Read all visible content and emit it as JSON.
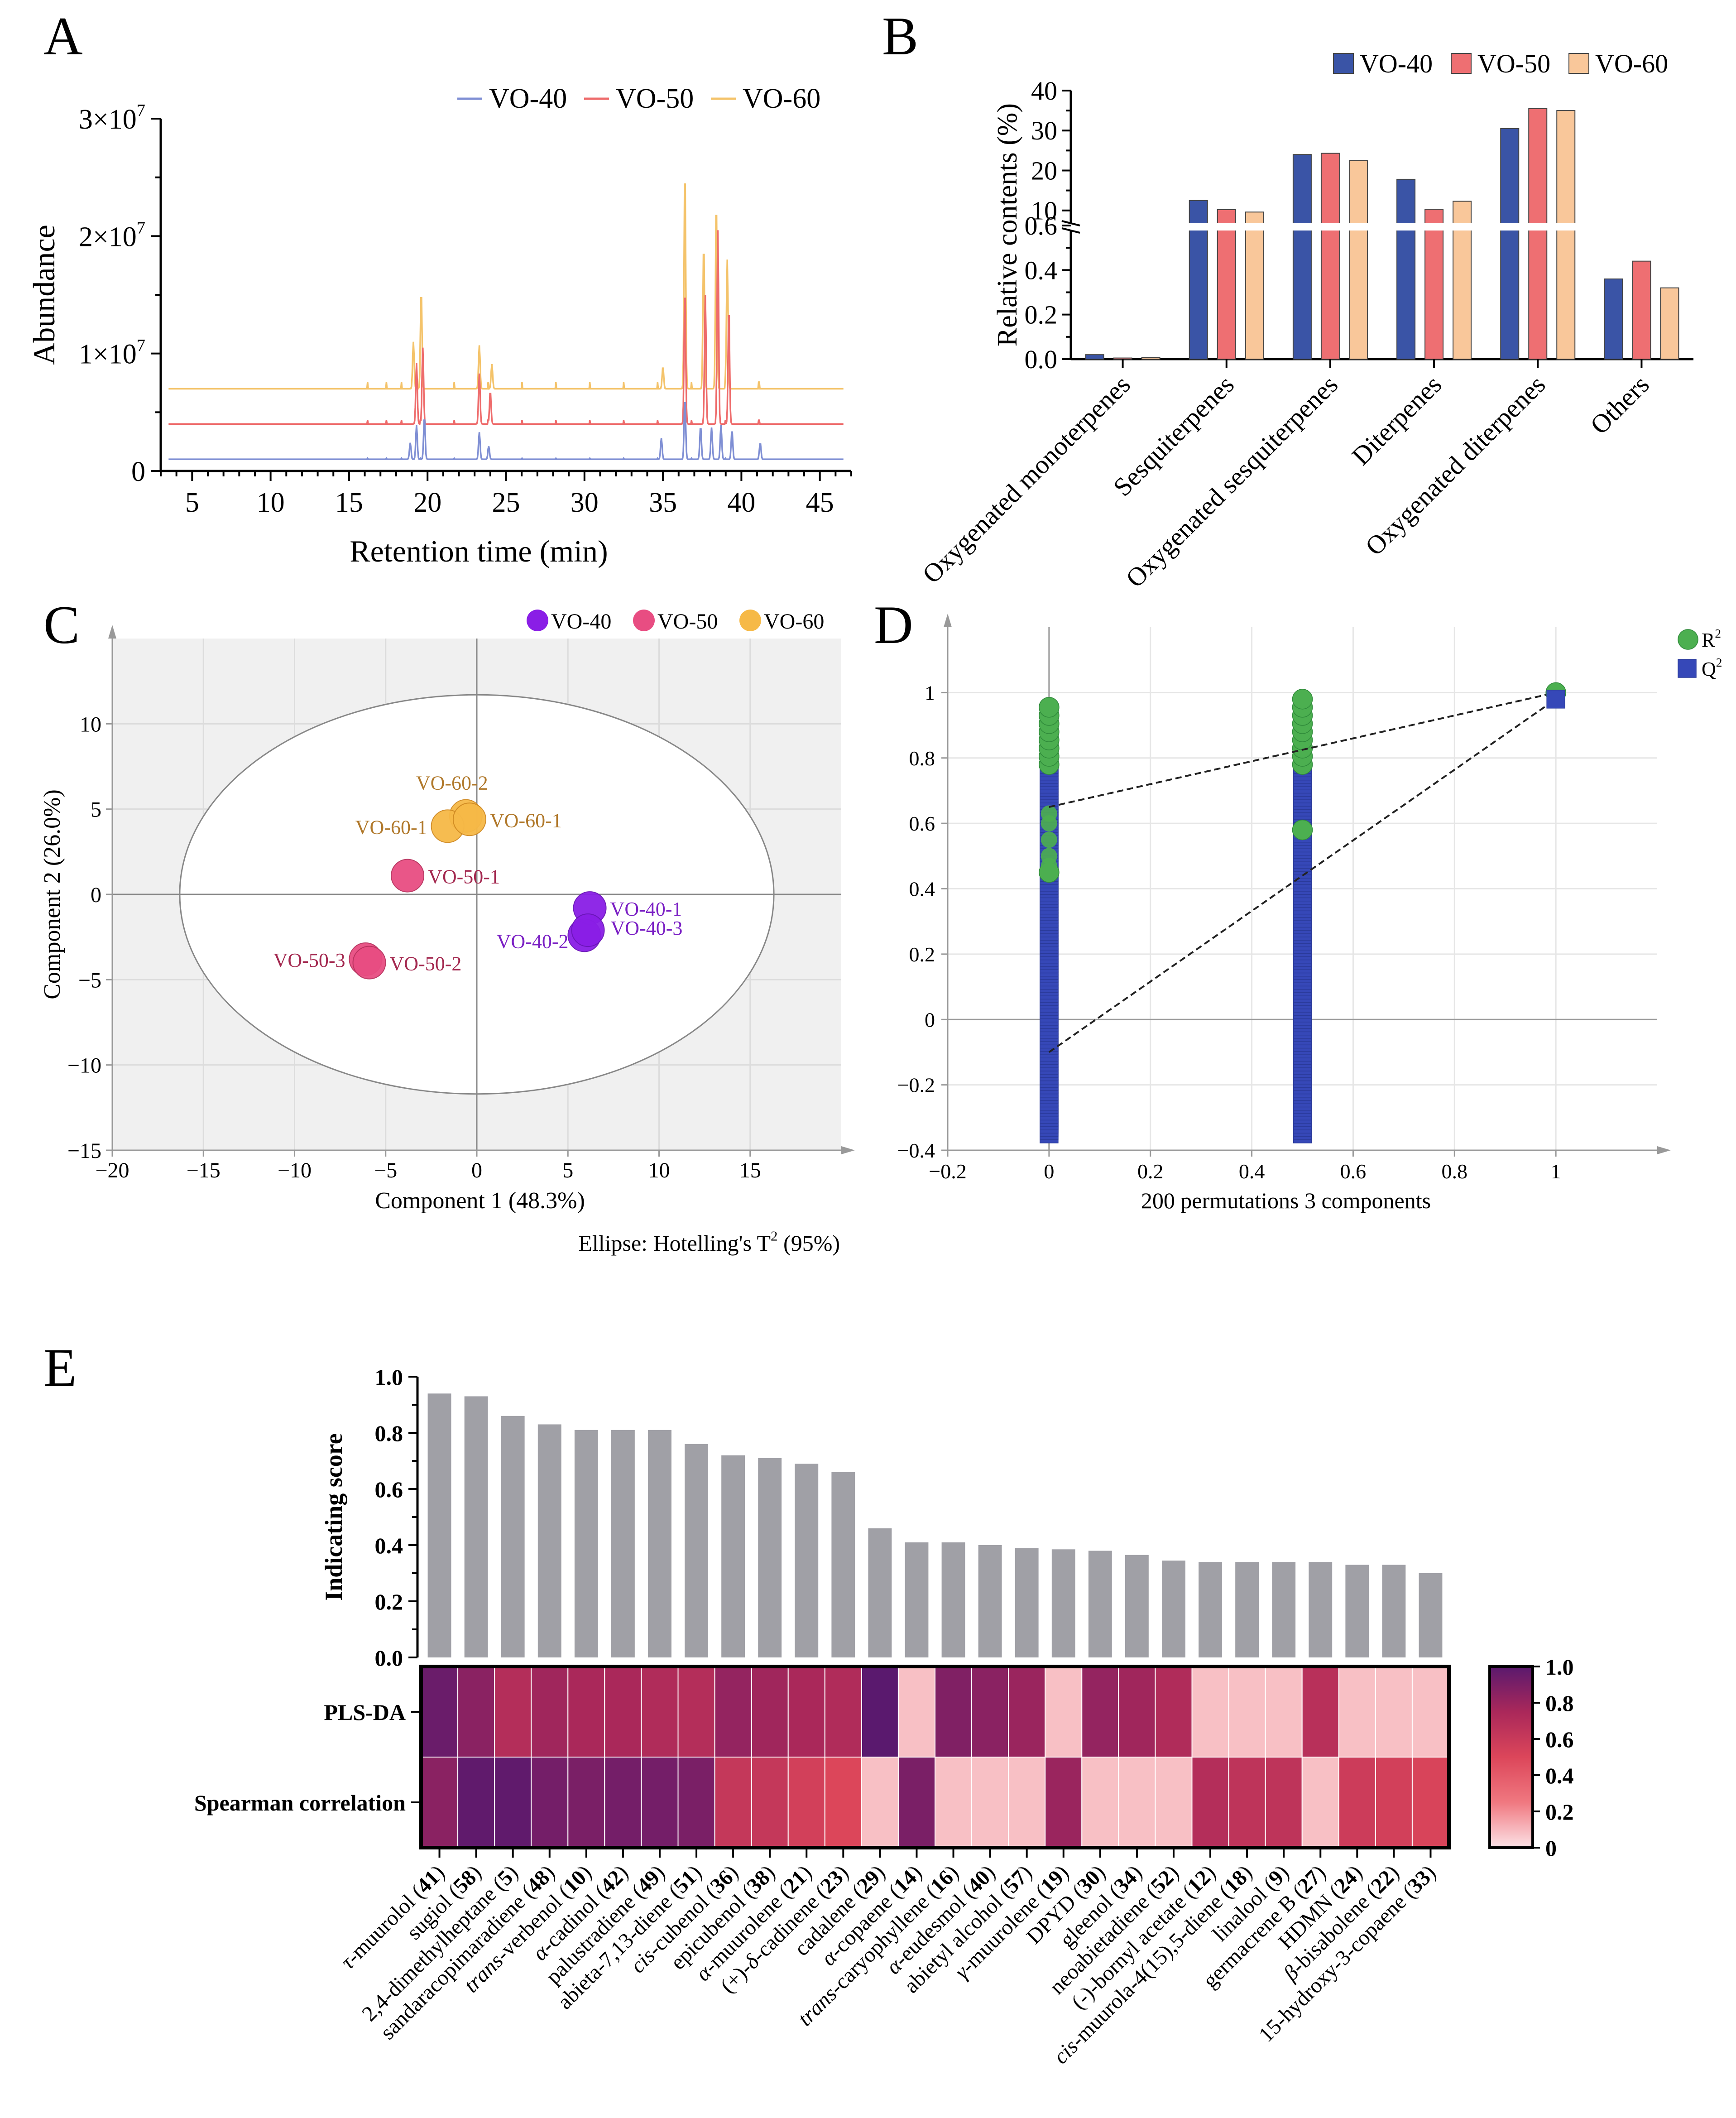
{
  "panel_labels": [
    "A",
    "B",
    "C",
    "D",
    "E"
  ],
  "colors": {
    "vo40_line": "#7f8fd4",
    "vo50_line": "#ee6b6b",
    "vo60_line": "#f4c36a",
    "vo40_bar": "#3a54a6",
    "vo50_bar": "#ee6f72",
    "vo60_bar": "#f9c79a",
    "vo40_pt": "#8a1ee6",
    "vo50_pt": "#e84d82",
    "vo60_pt": "#f6b947",
    "r2": "#4caf50",
    "q2": "#3648b8",
    "gray_bar": "#a0a0a6"
  },
  "chart_data": [
    {
      "panel": "A",
      "type": "line",
      "xlabel": "Retention time (min)",
      "ylabel": "Abundance",
      "xlim": [
        3,
        47
      ],
      "ylim": [
        0,
        30000000
      ],
      "xticks": [
        "5",
        "10",
        "15",
        "20",
        "25",
        "30",
        "35",
        "40",
        "45"
      ],
      "yticks": [
        "0",
        "1×10",
        "2×10",
        "3×10"
      ],
      "ytick_exp": "7",
      "series": [
        {
          "name": "VO-40",
          "baseline": 1000000,
          "peaks": [
            [
              18.9,
              1400000
            ],
            [
              19.3,
              2900000
            ],
            [
              19.8,
              3600000
            ],
            [
              23.3,
              2300000
            ],
            [
              23.9,
              1100000
            ],
            [
              34.9,
              1800000
            ],
            [
              36.4,
              5200000
            ],
            [
              37.4,
              2800000
            ],
            [
              38.1,
              2700000
            ],
            [
              38.7,
              2900000
            ],
            [
              39.4,
              2500000
            ],
            [
              41.2,
              1400000
            ]
          ]
        },
        {
          "name": "VO-50",
          "baseline": 4000000,
          "peaks": [
            [
              19.3,
              5200000
            ],
            [
              19.7,
              6500000
            ],
            [
              23.3,
              4300000
            ],
            [
              24.0,
              2800000
            ],
            [
              36.4,
              11600000
            ],
            [
              37.7,
              11000000
            ],
            [
              38.5,
              16500000
            ],
            [
              39.2,
              10000000
            ]
          ]
        },
        {
          "name": "VO-60",
          "baseline": 7000000,
          "peaks": [
            [
              19.1,
              4000000
            ],
            [
              19.6,
              8400000
            ],
            [
              23.3,
              3700000
            ],
            [
              24.1,
              2100000
            ],
            [
              35.0,
              1900000
            ],
            [
              36.4,
              18900000
            ],
            [
              37.6,
              12400000
            ],
            [
              38.4,
              16000000
            ],
            [
              39.1,
              11000000
            ]
          ]
        }
      ]
    },
    {
      "panel": "B",
      "type": "bar",
      "ylabel": "Relative contents (%)",
      "categories": [
        "Oxygenated monoterpenes",
        "Sesquiterpenes",
        "Oxygenated sesquiterpenes",
        "Diterpenes",
        "Oxygenated diterpenes",
        "Others"
      ],
      "series": [
        {
          "name": "VO-40",
          "values": [
            0.02,
            12.5,
            24.0,
            17.8,
            30.5,
            0.36
          ]
        },
        {
          "name": "VO-50",
          "values": [
            0.005,
            10.2,
            24.3,
            10.3,
            35.5,
            0.44
          ]
        },
        {
          "name": "VO-60",
          "values": [
            0.008,
            9.6,
            22.5,
            12.3,
            35.0,
            0.32
          ]
        }
      ],
      "ytick_upper": [
        "10",
        "20",
        "30",
        "40"
      ],
      "ytick_lower": [
        "0.0",
        "0.2",
        "0.4",
        "0.6"
      ],
      "axis_break": [
        0.6,
        6
      ]
    },
    {
      "panel": "C",
      "type": "scatter",
      "xlabel": "Component 1 (48.3%)",
      "ylabel": "Component 2 (26.0%)",
      "xlim": [
        -20,
        20
      ],
      "ylim": [
        -15,
        15
      ],
      "xticks": [
        "-20",
        "-15",
        "-10",
        "-5",
        "0",
        "5",
        "10",
        "15"
      ],
      "yticks": [
        "-15",
        "-10",
        "-5",
        "0",
        "5",
        "10"
      ],
      "ellipse_note": "Ellipse: Hotelling's T",
      "ellipse": {
        "cx": 0,
        "cy": 0,
        "rx": 16.3,
        "ry": 11.7
      },
      "legend": [
        "VO-40",
        "VO-50",
        "VO-60"
      ],
      "points": [
        {
          "group": "VO-60",
          "label": "VO-60-2",
          "x": -0.6,
          "y": 4.6
        },
        {
          "group": "VO-60",
          "label": "VO-60-1",
          "x": -1.6,
          "y": 4.0
        },
        {
          "group": "VO-60",
          "label": "VO-60-1",
          "x": -0.4,
          "y": 4.4
        },
        {
          "group": "VO-50",
          "label": "VO-50-1",
          "x": -3.8,
          "y": 1.1
        },
        {
          "group": "VO-50",
          "label": "VO-50-3",
          "x": -6.1,
          "y": -3.8
        },
        {
          "group": "VO-50",
          "label": "VO-50-2",
          "x": -5.9,
          "y": -4.0
        },
        {
          "group": "VO-40",
          "label": "VO-40-1",
          "x": 6.2,
          "y": -0.8
        },
        {
          "group": "VO-40",
          "label": "VO-40-2",
          "x": 5.9,
          "y": -2.4
        },
        {
          "group": "VO-40",
          "label": "VO-40-3",
          "x": 6.1,
          "y": -2.1
        }
      ]
    },
    {
      "panel": "D",
      "type": "scatter",
      "xlabel": "200 permutations 3 components",
      "xlim": [
        -0.2,
        1.2
      ],
      "ylim": [
        -0.4,
        1.2
      ],
      "xticks": [
        "-0.2",
        "0",
        "0.2",
        "0.4",
        "0.6",
        "0.8",
        "1"
      ],
      "yticks": [
        "-0.4",
        "-0.2",
        "0",
        "0.2",
        "0.4",
        "0.6",
        "0.8",
        "1"
      ],
      "legend": [
        "R",
        "Q"
      ],
      "r2_intercept": 0.65,
      "q2_intercept": -0.1,
      "r2_range_x0": [
        0.45,
        0.98
      ],
      "q2_range_x0": [
        -0.35,
        0.8
      ],
      "r2_range_x05": [
        0.58,
        0.99
      ],
      "q2_range_x05": [
        -0.35,
        0.92
      ],
      "original": {
        "x": 1,
        "r2": 1.0,
        "q2": 0.98
      }
    },
    {
      "panel": "E",
      "type": "bar+heatmap",
      "ylabel": "Indicating score",
      "yticks": [
        "0.0",
        "0.2",
        "0.4",
        "0.6",
        "0.8",
        "1.0"
      ],
      "compounds": [
        {
          "pre": "",
          "it": "τ",
          "post": "-muurolol",
          "num": "41"
        },
        {
          "pre": "sugiol",
          "it": "",
          "post": "",
          "num": "58"
        },
        {
          "pre": "2,4-dimethylheptane",
          "it": "",
          "post": "",
          "num": "5"
        },
        {
          "pre": "sandaracopimaradiene",
          "it": "",
          "post": "",
          "num": "48"
        },
        {
          "pre": "",
          "it": "trans",
          "post": "-verbenol",
          "num": "10"
        },
        {
          "pre": "",
          "it": "α",
          "post": "-cadinol",
          "num": "42"
        },
        {
          "pre": "palustradiene",
          "it": "",
          "post": "",
          "num": "49"
        },
        {
          "pre": "abieta-7,13-diene",
          "it": "",
          "post": "",
          "num": "51"
        },
        {
          "pre": "",
          "it": "cis",
          "post": "-cubenol",
          "num": "36"
        },
        {
          "pre": "epicubenol",
          "it": "",
          "post": "",
          "num": "38"
        },
        {
          "pre": "",
          "it": "α",
          "post": "-muurolene",
          "num": "21"
        },
        {
          "pre": "(+)-",
          "it": "δ",
          "post": "-cadinene",
          "num": "23"
        },
        {
          "pre": "cadalene",
          "it": "",
          "post": "",
          "num": "29"
        },
        {
          "pre": "",
          "it": "α",
          "post": "-copaene",
          "num": "14"
        },
        {
          "pre": "",
          "it": "trans",
          "post": "-caryophyllene",
          "num": "16"
        },
        {
          "pre": "",
          "it": "α",
          "post": "-eudesmol",
          "num": "40"
        },
        {
          "pre": "abietyl alcohol",
          "it": "",
          "post": "",
          "num": "57"
        },
        {
          "pre": "",
          "it": "γ",
          "post": "-muurolene",
          "num": "19"
        },
        {
          "pre": "DPYD",
          "it": "",
          "post": "",
          "num": "30"
        },
        {
          "pre": "gleenol",
          "it": "",
          "post": "",
          "num": "34"
        },
        {
          "pre": "neoabietadiene",
          "it": "",
          "post": "",
          "num": "52"
        },
        {
          "pre": "(-)-bornyl acetate",
          "it": "",
          "post": "",
          "num": "12"
        },
        {
          "pre": "",
          "it": "cis",
          "post": "-muurola-4(15),5-diene",
          "num": "18"
        },
        {
          "pre": "linalool",
          "it": "",
          "post": "",
          "num": "9"
        },
        {
          "pre": "germacrene B",
          "it": "",
          "post": "",
          "num": "27"
        },
        {
          "pre": "HDMN",
          "it": "",
          "post": "",
          "num": "24"
        },
        {
          "pre": "",
          "it": "β",
          "post": "-bisabolene",
          "num": "22"
        },
        {
          "pre": "15-hydroxy-3-copaene",
          "it": "",
          "post": "",
          "num": "33"
        }
      ],
      "scores": [
        0.94,
        0.93,
        0.86,
        0.83,
        0.81,
        0.81,
        0.81,
        0.76,
        0.72,
        0.71,
        0.69,
        0.66,
        0.46,
        0.41,
        0.41,
        0.4,
        0.39,
        0.385,
        0.38,
        0.365,
        0.345,
        0.34,
        0.34,
        0.34,
        0.34,
        0.33,
        0.33,
        0.3
      ],
      "heat_rows": [
        "PLS-DA",
        "Spearman correlation"
      ],
      "heat_pls": [
        0.95,
        0.85,
        0.7,
        0.78,
        0.75,
        0.75,
        0.72,
        0.7,
        0.82,
        0.78,
        0.75,
        0.72,
        1.0,
        0.08,
        0.88,
        0.85,
        0.8,
        0.08,
        0.82,
        0.78,
        0.72,
        0.08,
        0.08,
        0.08,
        0.68,
        0.08,
        0.08,
        0.08
      ],
      "heat_spear": [
        0.85,
        0.98,
        0.98,
        0.92,
        0.9,
        0.92,
        0.92,
        0.9,
        0.62,
        0.62,
        0.55,
        0.5,
        0.08,
        0.9,
        0.08,
        0.08,
        0.08,
        0.8,
        0.08,
        0.08,
        0.08,
        0.7,
        0.65,
        0.65,
        0.08,
        0.58,
        0.55,
        0.52
      ],
      "colorbar_ticks": [
        "0",
        "0.2",
        "0.4",
        "0.6",
        "0.8",
        "1.0"
      ]
    }
  ]
}
